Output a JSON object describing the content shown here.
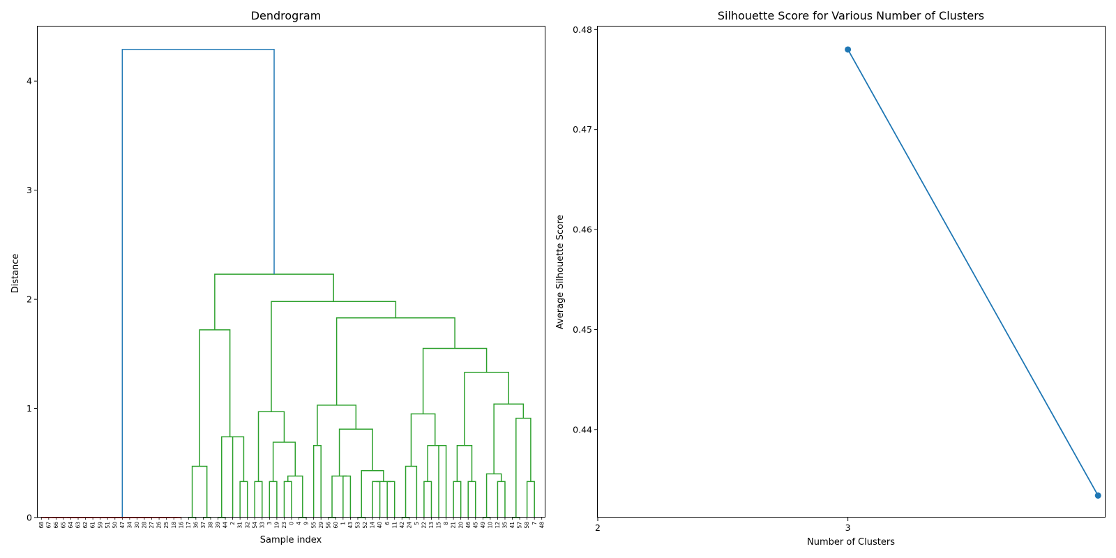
{
  "chart_data": [
    {
      "type": "dendrogram",
      "title": "Dendrogram",
      "xlabel": "Sample index",
      "ylabel": "Distance",
      "ylim": [
        0,
        4.5
      ],
      "yticks": [
        "0",
        "1",
        "2",
        "3",
        "4"
      ],
      "leaf_labels": [
        "68",
        "67",
        "66",
        "65",
        "64",
        "63",
        "62",
        "61",
        "59",
        "51",
        "50",
        "47",
        "34",
        "30",
        "28",
        "27",
        "26",
        "25",
        "18",
        "16",
        "17",
        "36",
        "37",
        "38",
        "39",
        "44",
        "2",
        "31",
        "32",
        "54",
        "33",
        "3",
        "19",
        "23",
        "0",
        "4",
        "9",
        "55",
        "29",
        "56",
        "60",
        "1",
        "43",
        "53",
        "52",
        "14",
        "40",
        "6",
        "11",
        "42",
        "24",
        "5",
        "22",
        "13",
        "15",
        "8",
        "21",
        "20",
        "46",
        "45",
        "49",
        "10",
        "12",
        "35",
        "41",
        "57",
        "58",
        "7",
        "48"
      ],
      "link_colors": {
        "top": "#1f77b4",
        "cluster_a": "#d62728",
        "cluster_b": "#2ca02c"
      },
      "merges": [
        {
          "left": 0,
          "right": 1,
          "height": 0.0,
          "color": "cluster_a"
        },
        {
          "left": 2,
          "right": 3,
          "height": 0.0,
          "color": "cluster_a"
        },
        {
          "left": 4,
          "right": 5,
          "height": 0.0,
          "color": "cluster_a"
        },
        {
          "left": 6,
          "right": 7,
          "height": 0.0,
          "color": "cluster_a"
        },
        {
          "left": 8,
          "right": 9,
          "height": 0.0,
          "color": "cluster_a"
        },
        {
          "left": 10,
          "right": 11,
          "height": 0.0,
          "color": "cluster_a"
        },
        {
          "left": 12,
          "right": 13,
          "height": 0.0,
          "color": "cluster_a"
        },
        {
          "left": 14,
          "right": 15,
          "height": 0.0,
          "color": "cluster_a"
        },
        {
          "left": 16,
          "right": 17,
          "height": 0.0,
          "color": "cluster_a"
        },
        {
          "left": 18,
          "right": 19,
          "height": 0.0,
          "color": "cluster_a"
        },
        {
          "left": 69,
          "right": 70,
          "height": 0.0,
          "color": "cluster_a"
        },
        {
          "left": 71,
          "right": 72,
          "height": 0.0,
          "color": "cluster_a"
        },
        {
          "left": 73,
          "right": 74,
          "height": 0.0,
          "color": "cluster_a"
        },
        {
          "left": 75,
          "right": 76,
          "height": 0.0,
          "color": "cluster_a"
        },
        {
          "left": 77,
          "right": 78,
          "height": 0.0,
          "color": "cluster_a"
        },
        {
          "left": 79,
          "right": 80,
          "height": 0.0,
          "color": "cluster_a"
        },
        {
          "left": 81,
          "right": 82,
          "height": 0.0,
          "color": "cluster_a"
        },
        {
          "left": 83,
          "right": 84,
          "height": 0.0,
          "color": "cluster_a"
        },
        {
          "left": 85,
          "right": 86,
          "height": 0.0,
          "color": "cluster_a"
        },
        {
          "left": 20,
          "right": 21,
          "height": 0.0,
          "color": "cluster_b"
        },
        {
          "left": 22,
          "right": 23,
          "height": 0.0,
          "color": "cluster_b"
        },
        {
          "left": 88,
          "right": 89,
          "height": 0.47,
          "color": "cluster_b"
        },
        {
          "left": 24,
          "right": 25,
          "height": 0.0,
          "color": "cluster_b"
        },
        {
          "left": 27,
          "right": 28,
          "height": 0.33,
          "color": "cluster_b"
        },
        {
          "left": 26,
          "right": 92,
          "height": 0.74,
          "color": "cluster_b"
        },
        {
          "left": 91,
          "right": 93,
          "height": 0.74,
          "color": "cluster_b"
        },
        {
          "left": 90,
          "right": 94,
          "height": 1.72,
          "color": "cluster_b"
        },
        {
          "left": 29,
          "right": 30,
          "height": 0.33,
          "color": "cluster_b"
        },
        {
          "left": 31,
          "right": 32,
          "height": 0.33,
          "color": "cluster_b"
        },
        {
          "left": 33,
          "right": 34,
          "height": 0.33,
          "color": "cluster_b"
        },
        {
          "left": 35,
          "right": 36,
          "height": 0.0,
          "color": "cluster_b"
        },
        {
          "left": 98,
          "right": 99,
          "height": 0.38,
          "color": "cluster_b"
        },
        {
          "left": 97,
          "right": 100,
          "height": 0.69,
          "color": "cluster_b"
        },
        {
          "left": 96,
          "right": 101,
          "height": 0.97,
          "color": "cluster_b"
        },
        {
          "left": 37,
          "right": 38,
          "height": 0.66,
          "color": "cluster_b"
        },
        {
          "left": 39,
          "right": 40,
          "height": 0.0,
          "color": "cluster_b"
        },
        {
          "left": 41,
          "right": 42,
          "height": 0.38,
          "color": "cluster_b"
        },
        {
          "left": 104,
          "right": 105,
          "height": 0.38,
          "color": "cluster_b"
        },
        {
          "left": 43,
          "right": 44,
          "height": 0.0,
          "color": "cluster_b"
        },
        {
          "left": 45,
          "right": 46,
          "height": 0.33,
          "color": "cluster_b"
        },
        {
          "left": 47,
          "right": 48,
          "height": 0.33,
          "color": "cluster_b"
        },
        {
          "left": 108,
          "right": 109,
          "height": 0.33,
          "color": "cluster_b"
        },
        {
          "left": 107,
          "right": 110,
          "height": 0.43,
          "color": "cluster_b"
        },
        {
          "left": 106,
          "right": 111,
          "height": 0.81,
          "color": "cluster_b"
        },
        {
          "left": 103,
          "right": 112,
          "height": 1.03,
          "color": "cluster_b"
        },
        {
          "left": 49,
          "right": 50,
          "height": 0.0,
          "color": "cluster_b"
        },
        {
          "left": 114,
          "right": 51,
          "height": 0.47,
          "color": "cluster_b"
        },
        {
          "left": 52,
          "right": 53,
          "height": 0.33,
          "color": "cluster_b"
        },
        {
          "left": 54,
          "right": 55,
          "height": 0.66,
          "color": "cluster_b"
        },
        {
          "left": 116,
          "right": 117,
          "height": 0.66,
          "color": "cluster_b"
        },
        {
          "left": 115,
          "right": 118,
          "height": 0.95,
          "color": "cluster_b"
        },
        {
          "left": 56,
          "right": 57,
          "height": 0.33,
          "color": "cluster_b"
        },
        {
          "left": 58,
          "right": 59,
          "height": 0.33,
          "color": "cluster_b"
        },
        {
          "left": 120,
          "right": 121,
          "height": 0.66,
          "color": "cluster_b"
        },
        {
          "left": 60,
          "right": 61,
          "height": 0.0,
          "color": "cluster_b"
        },
        {
          "left": 62,
          "right": 63,
          "height": 0.33,
          "color": "cluster_b"
        },
        {
          "left": 123,
          "right": 124,
          "height": 0.4,
          "color": "cluster_b"
        },
        {
          "left": 64,
          "right": 65,
          "height": 0.0,
          "color": "cluster_b"
        },
        {
          "left": 66,
          "right": 67,
          "height": 0.33,
          "color": "cluster_b"
        },
        {
          "left": 126,
          "right": 127,
          "height": 0.91,
          "color": "cluster_b"
        },
        {
          "left": 125,
          "right": 128,
          "height": 1.04,
          "color": "cluster_b"
        },
        {
          "left": 122,
          "right": 129,
          "height": 1.33,
          "color": "cluster_b"
        },
        {
          "left": 119,
          "right": 130,
          "height": 1.55,
          "color": "cluster_b"
        },
        {
          "left": 113,
          "right": 131,
          "height": 1.83,
          "color": "cluster_b"
        },
        {
          "left": 102,
          "right": 132,
          "height": 1.98,
          "color": "cluster_b"
        },
        {
          "left": 95,
          "right": 133,
          "height": 2.23,
          "color": "cluster_b"
        },
        {
          "left": 87,
          "right": 134,
          "height": 4.29,
          "color": "top"
        }
      ]
    },
    {
      "type": "line",
      "title": "Silhouette Score for Various Number of Clusters",
      "xlabel": "Number of Clusters",
      "ylabel": "Average Silhouette Score",
      "xlim": [
        2,
        4.03
      ],
      "ylim": [
        0.4312,
        0.4803
      ],
      "xticks": [
        "2",
        "3"
      ],
      "yticks": [
        "0.44",
        "0.45",
        "0.46",
        "0.47",
        "0.48"
      ],
      "x": [
        3,
        4
      ],
      "y": [
        0.478,
        0.4334
      ],
      "color": "#1f77b4"
    }
  ]
}
